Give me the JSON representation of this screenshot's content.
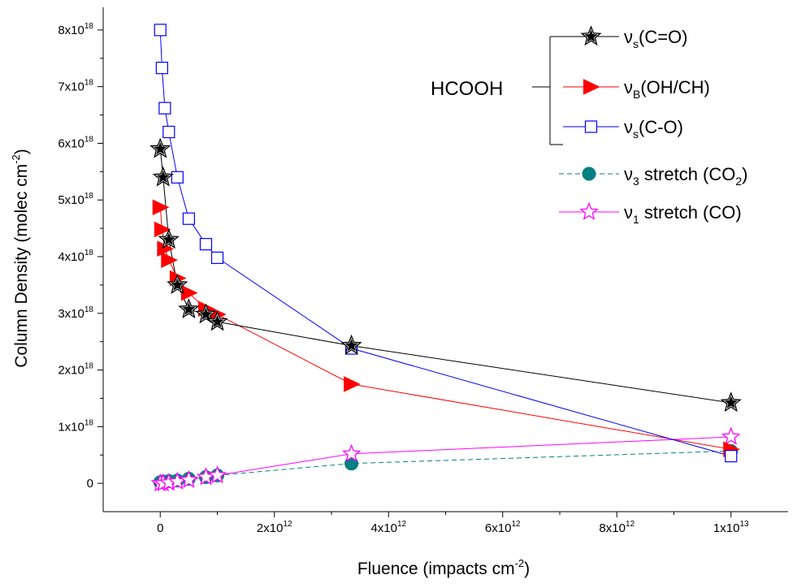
{
  "chart_data": {
    "type": "line",
    "title": "",
    "xlabel": "Fluence (impacts cm",
    "xlabel_sup": "-2",
    "xlabel_close": ")",
    "ylabel": "Column Density (molec cm",
    "ylabel_sup": "-2",
    "ylabel_close": ")",
    "xlim": [
      -1000000000000.0,
      11000000000000.0
    ],
    "ylim": [
      -5e+17,
      8.4e+18
    ],
    "x_ticks": [
      {
        "value": 0,
        "base": "0",
        "exp": ""
      },
      {
        "value": 2000000000000.0,
        "base": "2x10",
        "exp": "12"
      },
      {
        "value": 4000000000000.0,
        "base": "4x10",
        "exp": "12"
      },
      {
        "value": 6000000000000.0,
        "base": "6x10",
        "exp": "12"
      },
      {
        "value": 8000000000000.0,
        "base": "8x10",
        "exp": "12"
      },
      {
        "value": 10000000000000.0,
        "base": "1x10",
        "exp": "13"
      }
    ],
    "y_ticks": [
      {
        "value": 0,
        "base": "0",
        "exp": ""
      },
      {
        "value": 1e+18,
        "base": "1x10",
        "exp": "18"
      },
      {
        "value": 2e+18,
        "base": "2x10",
        "exp": "18"
      },
      {
        "value": 3e+18,
        "base": "3x10",
        "exp": "18"
      },
      {
        "value": 4e+18,
        "base": "4x10",
        "exp": "18"
      },
      {
        "value": 5e+18,
        "base": "5x10",
        "exp": "18"
      },
      {
        "value": 6e+18,
        "base": "6x10",
        "exp": "18"
      },
      {
        "value": 7e+18,
        "base": "7x10",
        "exp": "18"
      },
      {
        "value": 8e+18,
        "base": "8x10",
        "exp": "18"
      }
    ],
    "legend_group_label": "HCOOH",
    "legend_position": "top-right",
    "series": [
      {
        "name": "νs(C=O)",
        "label_main": "ν",
        "label_sub": "s",
        "label_rest": "(C=O)",
        "color": "#000000",
        "fill": "#000000",
        "marker": "star-outline-black",
        "dash": "",
        "x": [
          0,
          50000000000.0,
          150000000000.0,
          300000000000.0,
          500000000000.0,
          800000000000.0,
          1000000000000.0,
          3350000000000.0,
          10000000000000.0
        ],
        "y": [
          5.9e+18,
          5.4e+18,
          4.3e+18,
          3.5e+18,
          3.07e+18,
          2.98e+18,
          2.85e+18,
          2.43e+18,
          1.42e+18
        ]
      },
      {
        "name": "νB(OH/CH)",
        "label_main": "ν",
        "label_sub": "B",
        "label_rest": "(OH/CH)",
        "color": "#ff0000",
        "fill": "#ff0000",
        "marker": "triangle-right",
        "dash": "",
        "x": [
          0,
          30000000000.0,
          80000000000.0,
          150000000000.0,
          300000000000.0,
          500000000000.0,
          800000000000.0,
          1000000000000.0,
          3350000000000.0,
          10000000000000.0
        ],
        "y": [
          4.87e+18,
          4.48e+18,
          4.14e+18,
          3.94e+18,
          3.62e+18,
          3.36e+18,
          3.08e+18,
          2.98e+18,
          1.75e+18,
          6e+17
        ]
      },
      {
        "name": "νs(C-O)",
        "label_main": "ν",
        "label_sub": "s",
        "label_rest": "(C-O)",
        "color": "#0000ff",
        "fill": "#ffffff",
        "marker": "square-open",
        "dash": "",
        "x": [
          0,
          30000000000.0,
          80000000000.0,
          150000000000.0,
          300000000000.0,
          500000000000.0,
          800000000000.0,
          1000000000000.0,
          3350000000000.0,
          10000000000000.0
        ],
        "y": [
          8e+18,
          7.33e+18,
          6.62e+18,
          6.2e+18,
          5.4e+18,
          4.67e+18,
          4.22e+18,
          3.98e+18,
          2.38e+18,
          4.8e+17
        ]
      },
      {
        "name": "ν3 stretch (CO2)",
        "label_main": "ν",
        "label_sub": "3",
        "label_rest": " stretch (CO",
        "label_sub2": "2",
        "label_end": ")",
        "color": "#008080",
        "fill": "#008080",
        "marker": "circle",
        "dash": "6,4",
        "x": [
          0,
          50000000000.0,
          150000000000.0,
          300000000000.0,
          500000000000.0,
          800000000000.0,
          1000000000000.0,
          3350000000000.0,
          10000000000000.0
        ],
        "y": [
          2e+16,
          3e+16,
          4e+16,
          5e+16,
          8e+16,
          1.1e+17,
          1.4e+17,
          3.5e+17,
          5.7e+17
        ]
      },
      {
        "name": "ν1 stretch (CO)",
        "label_main": "ν",
        "label_sub": "1",
        "label_rest": " stretch (CO)",
        "color": "#ff00ff",
        "fill": "#ffffff",
        "marker": "star-outline-magenta",
        "dash": "",
        "x": [
          0,
          50000000000.0,
          150000000000.0,
          300000000000.0,
          500000000000.0,
          800000000000.0,
          1000000000000.0,
          3350000000000.0,
          10000000000000.0
        ],
        "y": [
          0,
          0,
          1e+16,
          3e+16,
          6e+16,
          1.1e+17,
          1.4e+17,
          5.2e+17,
          8.2e+17
        ]
      }
    ]
  }
}
